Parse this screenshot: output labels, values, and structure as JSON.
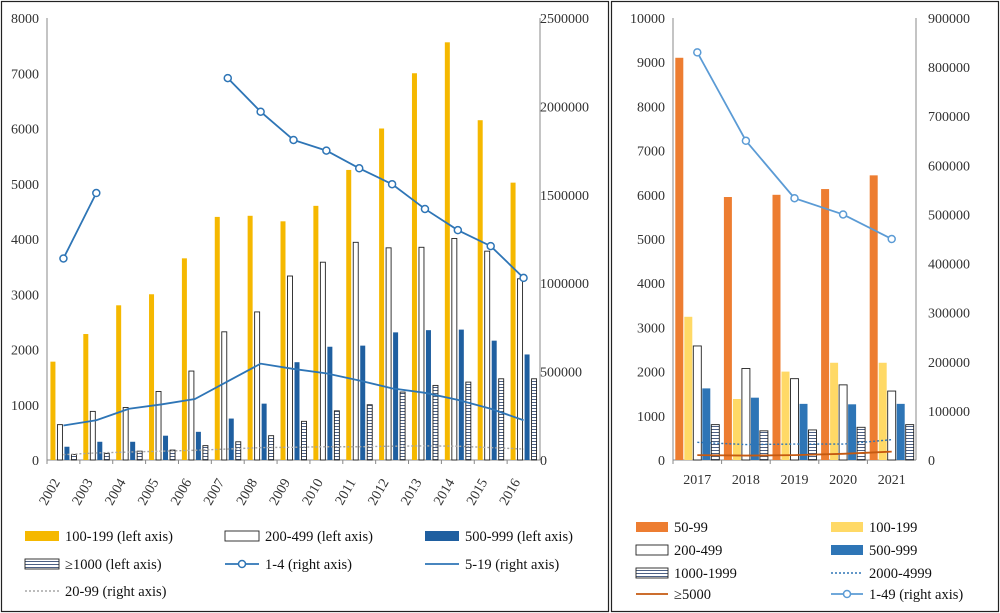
{
  "chart_data": [
    {
      "type": "bar",
      "combo": "bar + line",
      "x": [
        "2002",
        "2003",
        "2004",
        "2005",
        "2006",
        "2007",
        "2008",
        "2009",
        "2010",
        "2011",
        "2012",
        "2013",
        "2014",
        "2015",
        "2016"
      ],
      "x_tick_rotation": "vertical",
      "ylim": [
        0,
        8000
      ],
      "yticks": [
        "0",
        "1000",
        "2000",
        "3000",
        "4000",
        "5000",
        "6000",
        "7000",
        "8000"
      ],
      "y2lim": [
        0,
        2500000
      ],
      "y2ticks": [
        "0",
        "500000",
        "1000000",
        "1500000",
        "2000000",
        "2500000"
      ],
      "grid": false,
      "legend_position": "bottom",
      "bar_series": [
        {
          "name": "100-199 (left axis)",
          "color": "#F5B800",
          "style": "solid",
          "values": [
            1780,
            2280,
            2800,
            3000,
            3650,
            4400,
            4420,
            4320,
            4600,
            5250,
            6000,
            7000,
            7560,
            6150,
            5020
          ]
        },
        {
          "name": "200-499 (left axis)",
          "color": "#ffffff",
          "style": "outline",
          "values": [
            640,
            880,
            950,
            1240,
            1610,
            2320,
            2680,
            3330,
            3580,
            3940,
            3840,
            3850,
            4010,
            3780,
            3280
          ]
        },
        {
          "name": "500-999 (left axis)",
          "color": "#1F5FA0",
          "style": "solid",
          "values": [
            240,
            330,
            330,
            440,
            510,
            750,
            1020,
            1770,
            2050,
            2070,
            2310,
            2350,
            2360,
            2160,
            1910
          ]
        },
        {
          "name": "≥1000 (left axis)",
          "color": "#ffffff",
          "style": "hatch",
          "values": [
            100,
            120,
            160,
            180,
            260,
            330,
            440,
            700,
            890,
            1000,
            1230,
            1350,
            1410,
            1470,
            1470
          ]
        }
      ],
      "line_series": [
        {
          "name": "1-4 (right axis)",
          "color": "#2E75B6",
          "marker": "circle",
          "style": "solid",
          "values": [
            1140000,
            1510000,
            null,
            null,
            null,
            2160000,
            1970000,
            1810000,
            1750000,
            1650000,
            1560000,
            1420000,
            1300000,
            1210000,
            1030000
          ]
        },
        {
          "name": "5-19 (right axis)",
          "color": "#2E75B6",
          "marker": "none",
          "style": "solid",
          "values": [
            195000,
            225000,
            290000,
            315000,
            345000,
            445000,
            545000,
            515000,
            490000,
            450000,
            405000,
            380000,
            340000,
            290000,
            225000
          ]
        },
        {
          "name": "20-99 (right axis)",
          "color": "#A5A5A5",
          "marker": "none",
          "style": "dotted",
          "values": [
            30000,
            40000,
            45000,
            50000,
            55000,
            62000,
            70000,
            72000,
            75000,
            75000,
            78000,
            80000,
            78000,
            70000,
            62000
          ]
        }
      ],
      "legend": [
        [
          "100-199 (left axis)",
          "200-499 (left axis)",
          "500-999 (left axis)"
        ],
        [
          "≥1000 (left axis)",
          "1-4 (right axis)",
          "5-19 (right axis)"
        ],
        [
          "20-99 (right axis)"
        ]
      ]
    },
    {
      "type": "bar",
      "combo": "bar + line",
      "x": [
        "2017",
        "2018",
        "2019",
        "2020",
        "2021"
      ],
      "ylim": [
        0,
        10000
      ],
      "yticks": [
        "0",
        "1000",
        "2000",
        "3000",
        "4000",
        "5000",
        "6000",
        "7000",
        "8000",
        "9000",
        "10000"
      ],
      "y2lim": [
        0,
        900000
      ],
      "y2ticks": [
        "0",
        "100000",
        "200000",
        "300000",
        "400000",
        "500000",
        "600000",
        "700000",
        "800000",
        "900000"
      ],
      "grid": false,
      "legend_position": "bottom",
      "bar_series": [
        {
          "name": "50-99",
          "color": "#ED7D31",
          "style": "solid",
          "values": [
            9100,
            5950,
            6000,
            6130,
            6440
          ]
        },
        {
          "name": "100-199",
          "color": "#FFD966",
          "style": "solid",
          "values": [
            3240,
            1380,
            2000,
            2200,
            2200
          ]
        },
        {
          "name": "200-499",
          "color": "#ffffff",
          "style": "outline",
          "values": [
            2580,
            2070,
            1840,
            1700,
            1560
          ]
        },
        {
          "name": "500-999",
          "color": "#2E75B6",
          "style": "solid",
          "values": [
            1620,
            1410,
            1270,
            1260,
            1270
          ]
        },
        {
          "name": "1000-1999",
          "color": "#ffffff",
          "style": "hatch",
          "values": [
            800,
            660,
            680,
            740,
            800
          ]
        }
      ],
      "line_series": [
        {
          "name": "2000-4999",
          "color": "#2E75B6",
          "marker": "none",
          "style": "dotted",
          "values": [
            400,
            350,
            360,
            360,
            460
          ]
        },
        {
          "name": "≥5000",
          "color": "#C55A11",
          "marker": "none",
          "style": "solid",
          "values": [
            110,
            100,
            110,
            140,
            190
          ]
        },
        {
          "name": "1-49 (right axis)",
          "color": "#5B9BD5",
          "marker": "circle",
          "style": "solid",
          "axis": "right",
          "values": [
            830000,
            650000,
            533000,
            500000,
            450000
          ]
        }
      ],
      "legend": [
        [
          "50-99",
          "100-199"
        ],
        [
          "200-499",
          "500-999"
        ],
        [
          "1000-1999",
          "2000-4999"
        ],
        [
          "≥5000",
          "1-49 (right axis)"
        ]
      ]
    }
  ]
}
